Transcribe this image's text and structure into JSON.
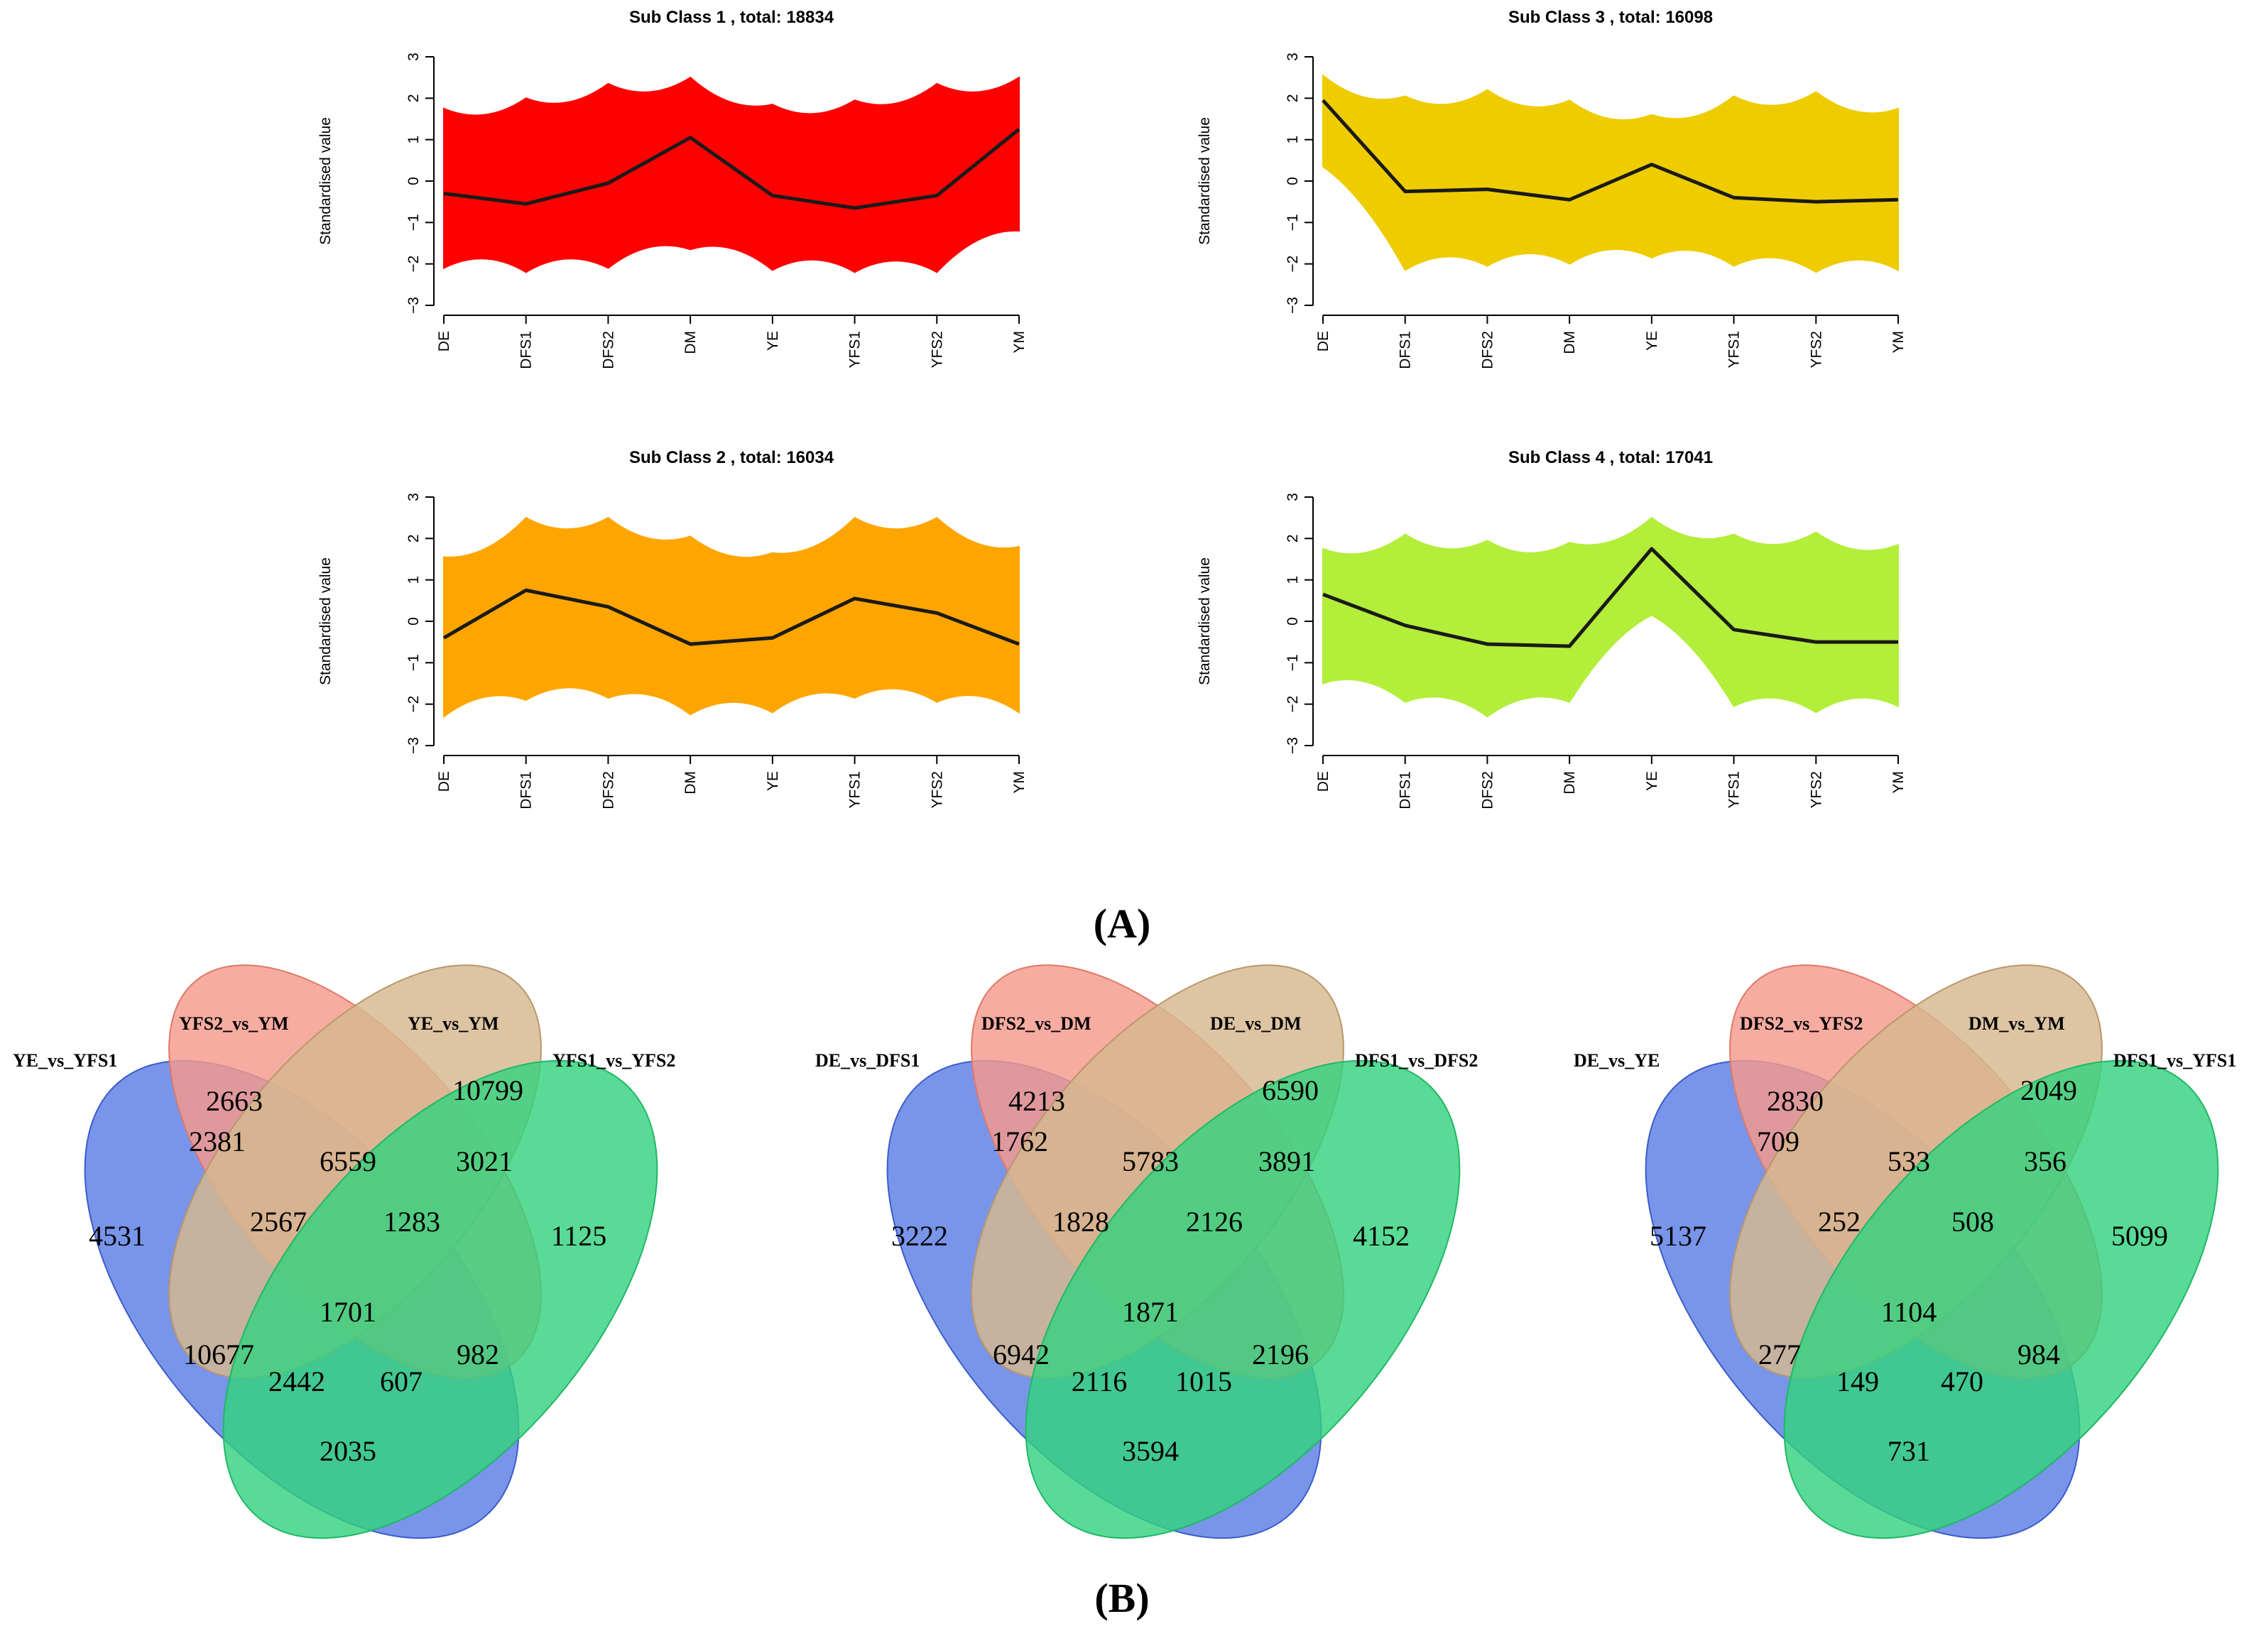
{
  "figure_labels": {
    "a": "A",
    "b": "B"
  },
  "chart_data": [
    {
      "type": "line",
      "title": "Sub Class  1  , total:  18834",
      "ylabel": "Standardised value",
      "categories": [
        "DE",
        "DFS1",
        "DFS2",
        "DM",
        "YE",
        "YFS1",
        "YFS2",
        "YM"
      ],
      "yticks": [
        "3",
        "2",
        "1",
        "0",
        "−1",
        "−2",
        "−3"
      ],
      "ylim": [
        -3,
        3
      ],
      "color": "#ff0000",
      "series": [
        {
          "name": "mean",
          "values": [
            -0.3,
            -0.55,
            -0.05,
            1.05,
            -0.35,
            -0.65,
            -0.35,
            1.25
          ]
        },
        {
          "name": "upper",
          "values": [
            1.75,
            2.0,
            2.35,
            2.5,
            1.85,
            1.95,
            2.35,
            2.5
          ]
        },
        {
          "name": "lower",
          "values": [
            -2.1,
            -2.2,
            -2.1,
            -1.65,
            -2.15,
            -2.2,
            -2.2,
            -1.2
          ]
        }
      ]
    },
    {
      "type": "line",
      "title": "Sub Class  3  , total:  16098",
      "ylabel": "Standardised value",
      "categories": [
        "DE",
        "DFS1",
        "DFS2",
        "DM",
        "YE",
        "YFS1",
        "YFS2",
        "YM"
      ],
      "yticks": [
        "3",
        "2",
        "1",
        "0",
        "−1",
        "−2",
        "−3"
      ],
      "ylim": [
        -3,
        3
      ],
      "color": "#eecc00",
      "series": [
        {
          "name": "mean",
          "values": [
            1.95,
            -0.25,
            -0.2,
            -0.45,
            0.4,
            -0.4,
            -0.5,
            -0.45
          ]
        },
        {
          "name": "upper",
          "values": [
            2.55,
            2.05,
            2.2,
            1.95,
            1.6,
            2.05,
            2.15,
            1.75
          ]
        },
        {
          "name": "lower",
          "values": [
            0.35,
            -2.15,
            -2.05,
            -2.0,
            -1.85,
            -2.05,
            -2.2,
            -2.15
          ]
        }
      ]
    },
    {
      "type": "line",
      "title": "Sub Class  2  , total:  16034",
      "ylabel": "Standardised value",
      "categories": [
        "DE",
        "DFS1",
        "DFS2",
        "DM",
        "YE",
        "YFS1",
        "YFS2",
        "YM"
      ],
      "yticks": [
        "3",
        "2",
        "1",
        "0",
        "−1",
        "−2",
        "−3"
      ],
      "ylim": [
        -3,
        3
      ],
      "color": "#ffa500",
      "series": [
        {
          "name": "mean",
          "values": [
            -0.4,
            0.75,
            0.35,
            -0.55,
            -0.4,
            0.55,
            0.2,
            -0.55
          ]
        },
        {
          "name": "upper",
          "values": [
            1.55,
            2.5,
            2.5,
            2.05,
            1.65,
            2.5,
            2.5,
            1.8
          ]
        },
        {
          "name": "lower",
          "values": [
            -2.3,
            -1.9,
            -1.85,
            -2.25,
            -2.2,
            -1.85,
            -1.95,
            -2.2
          ]
        }
      ]
    },
    {
      "type": "line",
      "title": "Sub Class  4  , total:  17041",
      "ylabel": "Standardised value",
      "categories": [
        "DE",
        "DFS1",
        "DFS2",
        "DM",
        "YE",
        "YFS1",
        "YFS2",
        "YM"
      ],
      "yticks": [
        "3",
        "2",
        "1",
        "0",
        "−1",
        "−2",
        "−3"
      ],
      "ylim": [
        -3,
        3
      ],
      "color": "#b3ee3a",
      "series": [
        {
          "name": "mean",
          "values": [
            0.65,
            -0.1,
            -0.55,
            -0.6,
            1.75,
            -0.2,
            -0.5,
            -0.5
          ]
        },
        {
          "name": "upper",
          "values": [
            1.75,
            2.1,
            1.95,
            1.9,
            2.5,
            2.1,
            2.15,
            1.85
          ]
        },
        {
          "name": "lower",
          "values": [
            -1.5,
            -1.95,
            -2.3,
            -1.95,
            0.15,
            -2.05,
            -2.2,
            -2.05
          ]
        }
      ]
    },
    {
      "type": "venn",
      "sets": [
        "YE_vs_YFS1",
        "YFS2_vs_YM",
        "YE_vs_YM",
        "YFS1_vs_YFS2"
      ],
      "regions": {
        "a": "4531",
        "b": "2663",
        "c": "10799",
        "d": "1125",
        "ab": "2381",
        "bc": "6559",
        "cd": "3021",
        "abc": "2567",
        "bcd": "1283",
        "abcd": "1701",
        "ac": "10677",
        "acd": "2442",
        "abd": "607",
        "bd": "982",
        "ad": "2035"
      }
    },
    {
      "type": "venn",
      "sets": [
        "DE_vs_DFS1",
        "DFS2_vs_DM",
        "DE_vs_DM",
        "DFS1_vs_DFS2"
      ],
      "regions": {
        "a": "3222",
        "b": "4213",
        "c": "6590",
        "d": "4152",
        "ab": "1762",
        "bc": "5783",
        "cd": "3891",
        "abc": "1828",
        "bcd": "2126",
        "abcd": "1871",
        "ac": "6942",
        "acd": "2116",
        "abd": "1015",
        "bd": "2196",
        "ad": "3594"
      }
    },
    {
      "type": "venn",
      "sets": [
        "DE_vs_YE",
        "DFS2_vs_YFS2",
        "DM_vs_YM",
        "DFS1_vs_YFS1"
      ],
      "regions": {
        "a": "5137",
        "b": "2830",
        "c": "2049",
        "d": "5099",
        "ab": "709",
        "bc": "533",
        "cd": "356",
        "abc": "252",
        "bcd": "508",
        "abcd": "1104",
        "ac": "277",
        "acd": "149",
        "abd": "470",
        "bd": "984",
        "ad": "731"
      }
    }
  ]
}
